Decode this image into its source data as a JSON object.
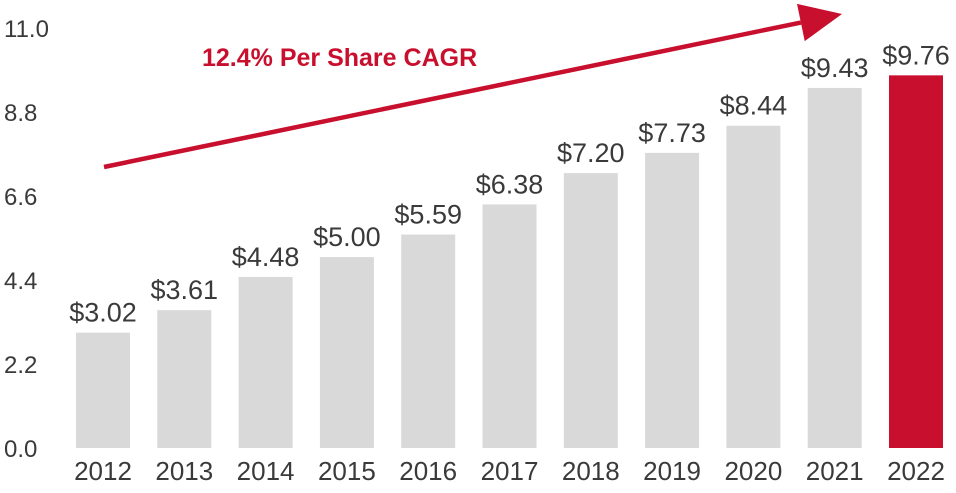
{
  "chart_data": {
    "type": "bar",
    "title": "",
    "xlabel": "",
    "ylabel": "",
    "ylim": [
      0,
      11
    ],
    "yticks": [
      "0.0",
      "2.2",
      "4.4",
      "6.6",
      "8.8",
      "11.0"
    ],
    "categories": [
      "2012",
      "2013",
      "2014",
      "2015",
      "2016",
      "2017",
      "2018",
      "2019",
      "2020",
      "2021",
      "2022"
    ],
    "values": [
      3.02,
      3.61,
      4.48,
      5.0,
      5.59,
      6.38,
      7.2,
      7.73,
      8.44,
      9.43,
      9.76
    ],
    "data_labels": [
      "$3.02",
      "$3.61",
      "$4.48",
      "$5.00",
      "$5.59",
      "$6.38",
      "$7.20",
      "$7.73",
      "$8.44",
      "$9.43",
      "$9.76"
    ],
    "highlight_index": 10,
    "annotation": {
      "text": "12.4% Per Share CAGR",
      "type": "trend-arrow"
    },
    "grid": false,
    "legend": "none"
  },
  "colors": {
    "bar": "#d9d9d9",
    "highlight": "#c8102e",
    "text": "#3a3a3a",
    "accent": "#c8102e"
  }
}
